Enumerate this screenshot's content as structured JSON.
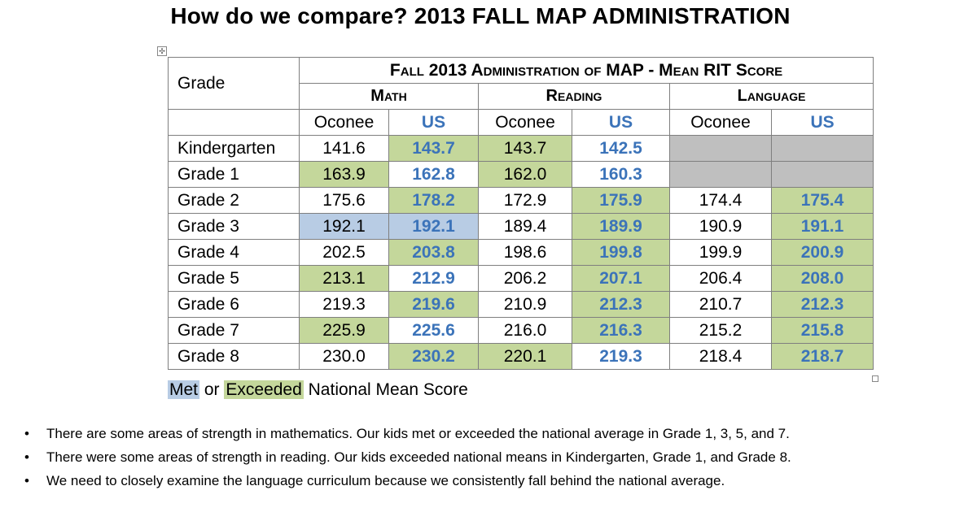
{
  "title": "How do we compare?  2013 FALL MAP ADMINISTRATION",
  "table": {
    "grade_header": "Grade",
    "main_header": "Fall 2013 Administration of MAP - Mean RIT Score",
    "subjects": [
      "Math",
      "Reading",
      "Language"
    ],
    "col_labels": {
      "local": "Oconee",
      "national": "US"
    },
    "rows": [
      {
        "grade": "Kindergarten",
        "math_oconee": "141.6",
        "math_us": "143.7",
        "reading_oconee": "143.7",
        "reading_us": "142.5",
        "language_oconee": "",
        "language_us": ""
      },
      {
        "grade": "Grade 1",
        "math_oconee": "163.9",
        "math_us": "162.8",
        "reading_oconee": "162.0",
        "reading_us": "160.3",
        "language_oconee": "",
        "language_us": ""
      },
      {
        "grade": "Grade 2",
        "math_oconee": "175.6",
        "math_us": "178.2",
        "reading_oconee": "172.9",
        "reading_us": "175.9",
        "language_oconee": "174.4",
        "language_us": "175.4"
      },
      {
        "grade": "Grade 3",
        "math_oconee": "192.1",
        "math_us": "192.1",
        "reading_oconee": "189.4",
        "reading_us": "189.9",
        "language_oconee": "190.9",
        "language_us": "191.1"
      },
      {
        "grade": "Grade 4",
        "math_oconee": "202.5",
        "math_us": "203.8",
        "reading_oconee": "198.6",
        "reading_us": "199.8",
        "language_oconee": "199.9",
        "language_us": "200.9"
      },
      {
        "grade": "Grade 5",
        "math_oconee": "213.1",
        "math_us": "212.9",
        "reading_oconee": "206.2",
        "reading_us": "207.1",
        "language_oconee": "206.4",
        "language_us": "208.0"
      },
      {
        "grade": "Grade 6",
        "math_oconee": "219.3",
        "math_us": "219.6",
        "reading_oconee": "210.9",
        "reading_us": "212.3",
        "language_oconee": "210.7",
        "language_us": "212.3"
      },
      {
        "grade": "Grade 7",
        "math_oconee": "225.9",
        "math_us": "225.6",
        "reading_oconee": "216.0",
        "reading_us": "216.3",
        "language_oconee": "215.2",
        "language_us": "215.8"
      },
      {
        "grade": "Grade 8",
        "math_oconee": "230.0",
        "math_us": "230.2",
        "reading_oconee": "220.1",
        "reading_us": "219.3",
        "language_oconee": "218.4",
        "language_us": "218.7"
      }
    ]
  },
  "legend": {
    "met_label": "Met",
    "or_label": "or",
    "exceeded_label": "Exceeded",
    "rest_label": "National Mean Score"
  },
  "bullets": [
    "There are some areas of strength in mathematics.  Our kids met or exceeded the national average in Grade 1, 3, 5, and 7.",
    "There were some areas of strength in reading.  Our kids exceeded national means in Kindergarten, Grade 1, and Grade 8.",
    "We need to closely examine the language curriculum because we consistently fall behind the national average."
  ],
  "bullet_symbol": "•",
  "colors": {
    "met": "#b8cce4",
    "exceeded": "#c4d79b",
    "no_data": "#bfbfbf",
    "us_text": "#3b73b9",
    "border": "#7f7f7f"
  }
}
